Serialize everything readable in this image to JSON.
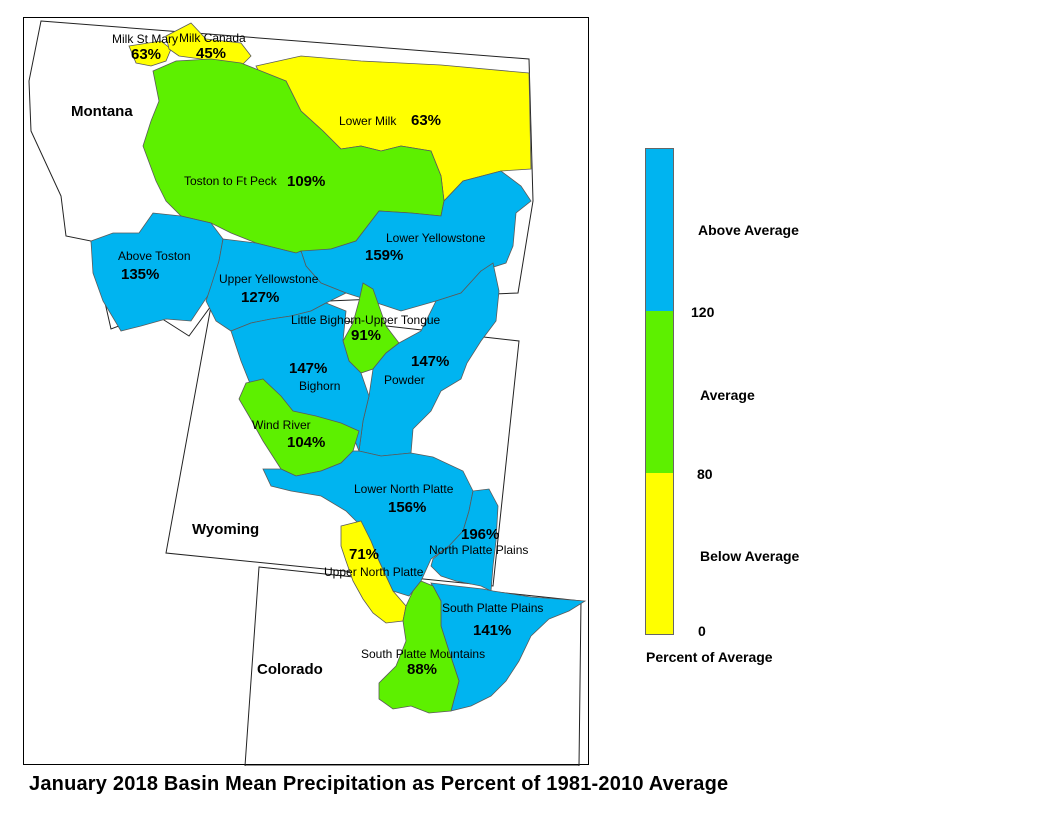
{
  "title": "January 2018 Basin Mean Precipitation as Percent of 1981-2010 Average",
  "colors": {
    "above": "#00b4f0",
    "average": "#5df000",
    "below": "#ffff00"
  },
  "states": [
    "Montana",
    "Wyoming",
    "Colorado"
  ],
  "basins": [
    {
      "name": "Milk St Mary",
      "pct": "63%",
      "category": "below"
    },
    {
      "name": "Milk Canada",
      "pct": "45%",
      "category": "below"
    },
    {
      "name": "Lower Milk",
      "pct": "63%",
      "category": "below"
    },
    {
      "name": "Toston to Ft Peck",
      "pct": "109%",
      "category": "average"
    },
    {
      "name": "Above Toston",
      "pct": "135%",
      "category": "above"
    },
    {
      "name": "Lower Yellowstone",
      "pct": "159%",
      "category": "above"
    },
    {
      "name": "Upper Yellowstone",
      "pct": "127%",
      "category": "above"
    },
    {
      "name": "Little Bighorn-Upper Tongue",
      "pct": "91%",
      "category": "average"
    },
    {
      "name": "Bighorn",
      "pct": "147%",
      "category": "above"
    },
    {
      "name": "Powder",
      "pct": "147%",
      "category": "above"
    },
    {
      "name": "Wind River",
      "pct": "104%",
      "category": "average"
    },
    {
      "name": "Lower North Platte",
      "pct": "156%",
      "category": "above"
    },
    {
      "name": "North Platte Plains",
      "pct": "196%",
      "category": "above"
    },
    {
      "name": "Upper North Platte",
      "pct": "71%",
      "category": "below"
    },
    {
      "name": "South Platte Plains",
      "pct": "141%",
      "category": "above"
    },
    {
      "name": "South Platte Mountains",
      "pct": "88%",
      "category": "average"
    }
  ],
  "legend": {
    "categories": [
      "Above Average",
      "Average",
      "Below Average"
    ],
    "breaks": [
      "120",
      "80",
      "0"
    ],
    "caption": "Percent of Average"
  }
}
